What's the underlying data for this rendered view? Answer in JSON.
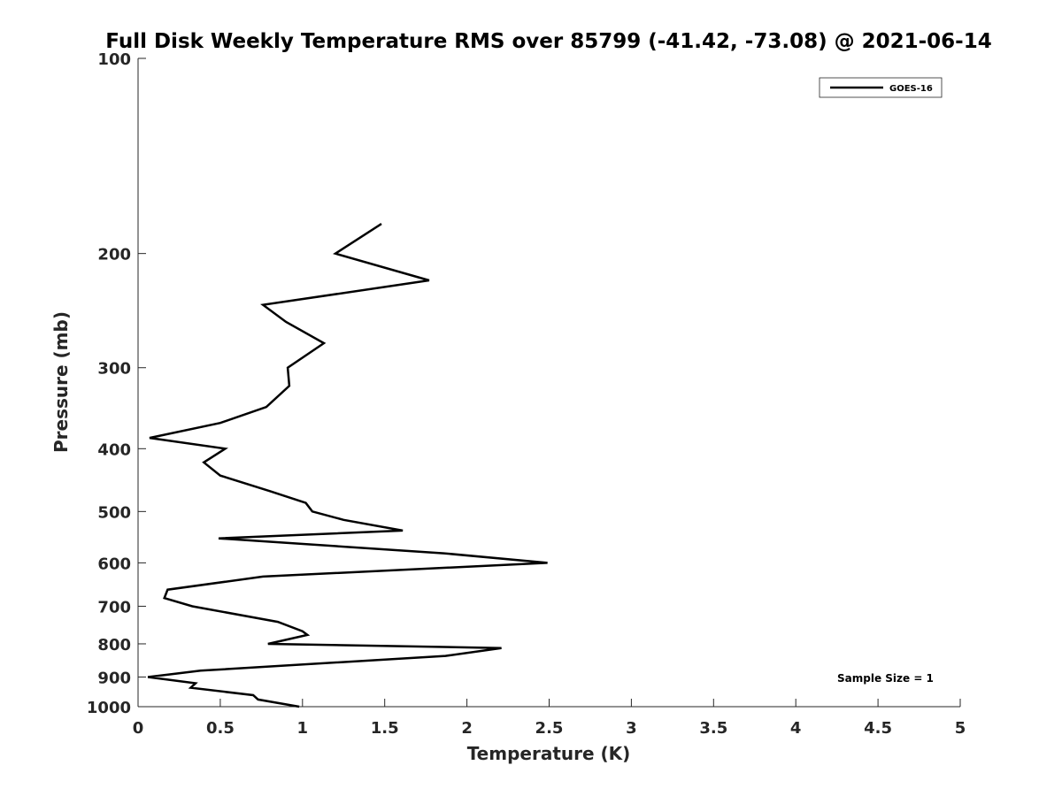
{
  "chart_data": {
    "type": "line",
    "title": "Full Disk Weekly Temperature RMS over 85799 (-41.42, -73.08) @ 2021-06-14",
    "xlabel": "Temperature (K)",
    "ylabel": "Pressure (mb)",
    "xlim": [
      0,
      5
    ],
    "ylim": [
      100,
      1000
    ],
    "y_scale": "log",
    "y_reversed": true,
    "x_ticks": [
      0,
      0.5,
      1,
      1.5,
      2,
      2.5,
      3,
      3.5,
      4,
      4.5,
      5
    ],
    "x_tick_labels": [
      "0",
      "0.5",
      "1",
      "1.5",
      "2",
      "2.5",
      "3",
      "3.5",
      "4",
      "4.5",
      "5"
    ],
    "y_ticks": [
      100,
      200,
      300,
      400,
      500,
      600,
      700,
      800,
      900,
      1000
    ],
    "y_tick_labels": [
      "100",
      "200",
      "300",
      "400",
      "500",
      "600",
      "700",
      "800",
      "900",
      "1000"
    ],
    "grid": false,
    "legend_position": "top-right",
    "annotation": "Sample Size = 1",
    "series": [
      {
        "name": "GOES-16",
        "color": "#000000",
        "points": [
          [
            1.48,
            180
          ],
          [
            1.2,
            200
          ],
          [
            1.77,
            220
          ],
          [
            0.76,
            240
          ],
          [
            0.9,
            255
          ],
          [
            1.13,
            275
          ],
          [
            0.91,
            300
          ],
          [
            0.92,
            320
          ],
          [
            0.78,
            345
          ],
          [
            0.5,
            365
          ],
          [
            0.07,
            385
          ],
          [
            0.53,
            400
          ],
          [
            0.4,
            420
          ],
          [
            0.5,
            440
          ],
          [
            0.8,
            465
          ],
          [
            1.02,
            485
          ],
          [
            1.06,
            500
          ],
          [
            1.25,
            515
          ],
          [
            1.61,
            535
          ],
          [
            0.49,
            550
          ],
          [
            1.86,
            580
          ],
          [
            2.49,
            600
          ],
          [
            0.76,
            630
          ],
          [
            0.18,
            660
          ],
          [
            0.16,
            680
          ],
          [
            0.33,
            700
          ],
          [
            0.85,
            740
          ],
          [
            1.0,
            765
          ],
          [
            1.03,
            775
          ],
          [
            0.79,
            800
          ],
          [
            2.21,
            812
          ],
          [
            1.87,
            835
          ],
          [
            0.38,
            880
          ],
          [
            0.06,
            900
          ],
          [
            0.35,
            920
          ],
          [
            0.32,
            935
          ],
          [
            0.7,
            960
          ],
          [
            0.73,
            975
          ],
          [
            0.98,
            1000
          ]
        ]
      }
    ]
  }
}
